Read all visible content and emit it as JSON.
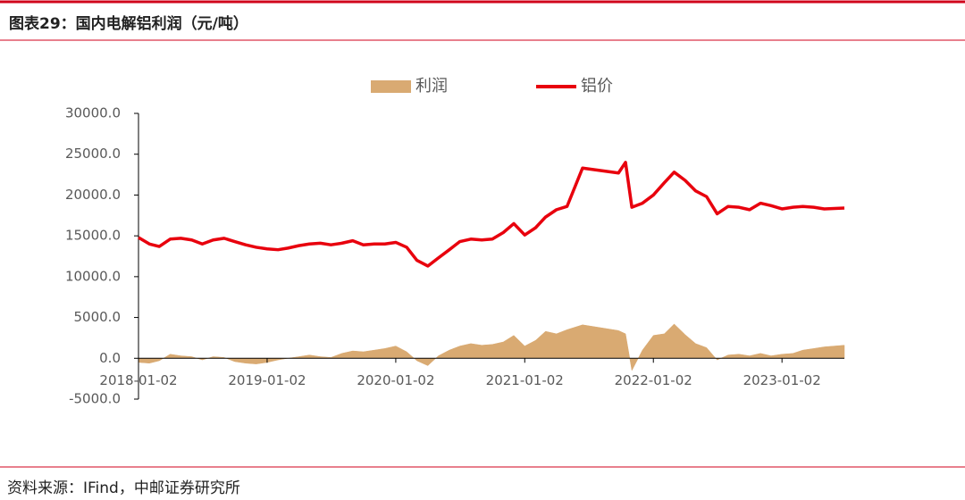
{
  "chart_data": {
    "type": "line-area",
    "title": "图表29：国内电解铝利润（元/吨）",
    "source": "资料来源：IFind，中邮证券研究所",
    "legend": "top",
    "x": [
      "2018-01-02",
      "2018-02-02",
      "2018-03-02",
      "2018-04-02",
      "2018-05-02",
      "2018-06-02",
      "2018-07-02",
      "2018-08-02",
      "2018-09-02",
      "2018-10-02",
      "2018-11-02",
      "2018-12-02",
      "2019-01-02",
      "2019-02-02",
      "2019-03-02",
      "2019-04-02",
      "2019-05-02",
      "2019-06-02",
      "2019-07-02",
      "2019-08-02",
      "2019-09-02",
      "2019-10-02",
      "2019-11-02",
      "2019-12-02",
      "2020-01-02",
      "2020-02-02",
      "2020-03-02",
      "2020-04-02",
      "2020-05-02",
      "2020-06-02",
      "2020-07-02",
      "2020-08-02",
      "2020-09-02",
      "2020-10-02",
      "2020-11-02",
      "2020-12-02",
      "2021-01-02",
      "2021-02-02",
      "2021-03-02",
      "2021-04-02",
      "2021-05-02",
      "2021-06-15",
      "2021-09-25",
      "2021-10-15",
      "2021-11-02",
      "2021-12-02",
      "2022-01-02",
      "2022-02-02",
      "2022-03-02",
      "2022-04-02",
      "2022-05-02",
      "2022-06-02",
      "2022-07-02",
      "2022-08-02",
      "2022-09-02",
      "2022-10-02",
      "2022-11-02",
      "2022-12-02",
      "2023-01-02",
      "2023-02-02",
      "2023-03-02",
      "2023-04-02",
      "2023-05-02",
      "2023-06-28"
    ],
    "series": [
      {
        "name": "铝价",
        "kind": "line",
        "color": "#e8000d",
        "values": [
          14800,
          14000,
          13700,
          14600,
          14700,
          14500,
          14000,
          14500,
          14700,
          14300,
          13900,
          13600,
          13400,
          13300,
          13500,
          13800,
          14000,
          14100,
          13900,
          14100,
          14400,
          13900,
          14000,
          14000,
          14200,
          13600,
          12000,
          11300,
          12300,
          13300,
          14300,
          14600,
          14500,
          14600,
          15400,
          16500,
          15100,
          16000,
          17300,
          18200,
          18600,
          23300,
          22700,
          24000,
          18500,
          19000,
          20000,
          21500,
          22800,
          21800,
          20500,
          19800,
          17700,
          18600,
          18500,
          18200,
          19000,
          18700,
          18300,
          18500,
          18600,
          18500,
          18300,
          18400
        ]
      },
      {
        "name": "利润",
        "kind": "area",
        "color": "#d9aa72",
        "values": [
          -500,
          -600,
          -300,
          500,
          300,
          200,
          -200,
          200,
          100,
          -400,
          -600,
          -700,
          -500,
          -200,
          0,
          200,
          400,
          200,
          100,
          600,
          900,
          800,
          1000,
          1200,
          1500,
          800,
          -300,
          -900,
          300,
          1000,
          1500,
          1800,
          1600,
          1700,
          2000,
          2800,
          1500,
          2200,
          3300,
          3000,
          3500,
          4100,
          3400,
          3000,
          -1500,
          1000,
          2800,
          3000,
          4200,
          2900,
          1800,
          1300,
          -200,
          400,
          500,
          300,
          600,
          300,
          500,
          600,
          1000,
          1200,
          1400,
          1600
        ]
      }
    ],
    "xlim": [
      "2018-01-02",
      "2023-06-28"
    ],
    "xticks": [
      "2018-01-02",
      "2019-01-02",
      "2020-01-02",
      "2021-01-02",
      "2022-01-02",
      "2023-01-02"
    ],
    "ylim": [
      -5000,
      30000
    ],
    "yticks": [
      {
        "value": -5000,
        "label": "-5000.0"
      },
      {
        "value": 0,
        "label": "0.0"
      },
      {
        "value": 5000,
        "label": "5000.0"
      },
      {
        "value": 10000,
        "label": "10000.0"
      },
      {
        "value": 15000,
        "label": "15000.0"
      },
      {
        "value": 20000,
        "label": "20000.0"
      },
      {
        "value": 25000,
        "label": "25000.0"
      },
      {
        "value": 30000,
        "label": "30000.0"
      }
    ]
  }
}
